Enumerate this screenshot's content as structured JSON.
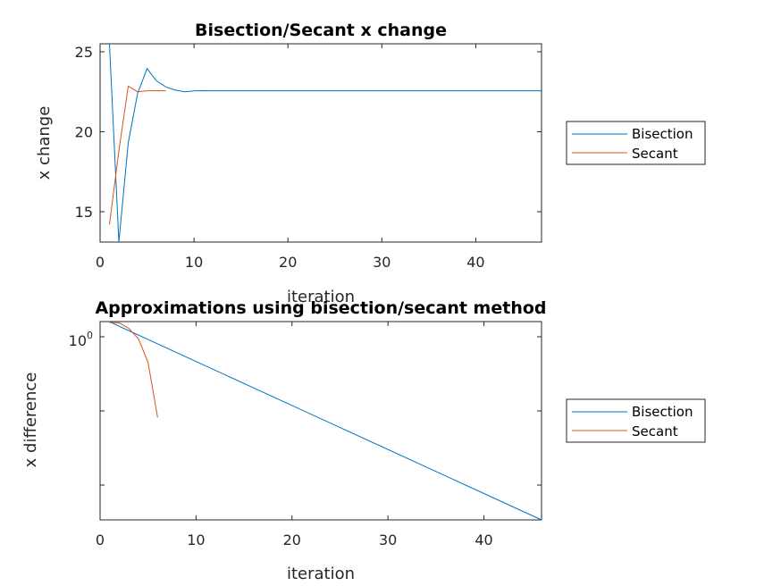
{
  "chart_data": [
    {
      "type": "line",
      "title": "Bisection/Secant x change",
      "xlabel": "iteration",
      "ylabel": "x change",
      "xlim": [
        0,
        47
      ],
      "ylim": [
        13.1,
        25.5
      ],
      "x_ticks": [
        0,
        10,
        20,
        30,
        40
      ],
      "y_ticks": [
        15,
        20,
        25
      ],
      "grid": false,
      "legend_position": "outside-right",
      "series": [
        {
          "name": "Bisection",
          "color": "#0072BD",
          "x": [
            1,
            2,
            3,
            4,
            5,
            6,
            7,
            8,
            9,
            10,
            11,
            12,
            13,
            14,
            15,
            16,
            17,
            18,
            19,
            20,
            21,
            22,
            23,
            24,
            25,
            26,
            27,
            28,
            29,
            30,
            31,
            32,
            33,
            34,
            35,
            36,
            37,
            38,
            39,
            40,
            41,
            42,
            43,
            44,
            45,
            46,
            47
          ],
          "values": [
            25.5,
            13.1,
            19.3,
            22.4,
            23.95,
            23.18,
            22.8,
            22.6,
            22.5,
            22.55,
            22.57,
            22.56,
            22.56,
            22.56,
            22.56,
            22.56,
            22.56,
            22.56,
            22.56,
            22.56,
            22.56,
            22.56,
            22.56,
            22.56,
            22.56,
            22.56,
            22.56,
            22.56,
            22.56,
            22.56,
            22.56,
            22.56,
            22.56,
            22.56,
            22.56,
            22.56,
            22.56,
            22.56,
            22.56,
            22.56,
            22.56,
            22.56,
            22.56,
            22.56,
            22.56,
            22.56,
            22.56
          ]
        },
        {
          "name": "Secant",
          "color": "#D95319",
          "x": [
            1,
            2,
            3,
            4,
            5,
            6,
            7
          ],
          "values": [
            14.2,
            18.8,
            22.85,
            22.5,
            22.56,
            22.56,
            22.56
          ]
        }
      ]
    },
    {
      "type": "line",
      "title": "Approximations using bisection/secant method",
      "xlabel": "iteration",
      "ylabel": "x difference",
      "xlim": [
        0,
        46
      ],
      "yscale": "log",
      "ylim": [
        3e-12,
        1.25
      ],
      "x_ticks": [
        0,
        10,
        20,
        30,
        40
      ],
      "y_tick_labels": [
        "10^0"
      ],
      "grid": false,
      "legend_position": "outside-right",
      "series": [
        {
          "name": "Bisection",
          "color": "#0072BD",
          "x": [
            1,
            46
          ],
          "values": [
            1.2,
            3e-12
          ]
        },
        {
          "name": "Secant",
          "color": "#D95319",
          "x": [
            1,
            2,
            3,
            4,
            5,
            6
          ],
          "values": [
            1.1,
            1.05,
            0.5,
            0.12,
            0.005,
            3e-06
          ]
        }
      ]
    }
  ]
}
